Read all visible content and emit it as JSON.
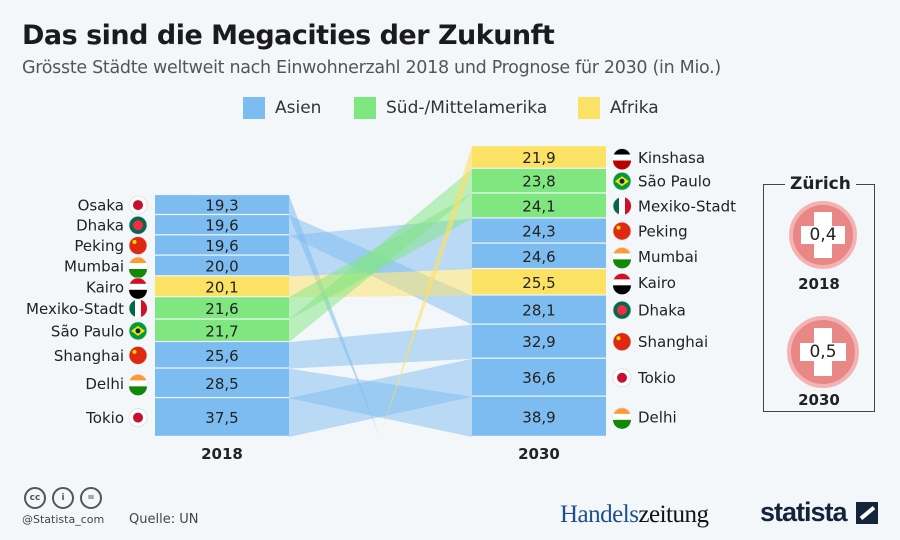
{
  "header": {
    "title": "Das sind die Megacities der Zukunft",
    "subtitle": "Grösste Städte weltweit nach Einwohnerzahl 2018 und Prognose für 2030 (in Mio.)"
  },
  "colors": {
    "Asien": "#7dbcf0",
    "Süd-/Mittelamerika": "#80e67f",
    "Afrika": "#fbe164",
    "background": "#f4f7fa"
  },
  "chart_data": {
    "type": "table",
    "title": "Das sind die Megacities der Zukunft",
    "legend": [
      "Asien",
      "Süd-/Mittelamerika",
      "Afrika"
    ],
    "legend_placement": "top",
    "columns": [
      "2018",
      "2030"
    ],
    "y2018": [
      {
        "city": "Osaka",
        "value": "19,3",
        "num": 19.3,
        "region": "Asien",
        "flag": "flag-japan"
      },
      {
        "city": "Dhaka",
        "value": "19,6",
        "num": 19.6,
        "region": "Asien",
        "flag": "flag-bangladesh"
      },
      {
        "city": "Peking",
        "value": "19,6",
        "num": 19.6,
        "region": "Asien",
        "flag": "flag-china"
      },
      {
        "city": "Mumbai",
        "value": "20,0",
        "num": 20.0,
        "region": "Asien",
        "flag": "flag-india"
      },
      {
        "city": "Kairo",
        "value": "20,1",
        "num": 20.1,
        "region": "Afrika",
        "flag": "flag-egypt"
      },
      {
        "city": "Mexiko-Stadt",
        "value": "21,6",
        "num": 21.6,
        "region": "Süd-/Mittelamerika",
        "flag": "flag-mexico"
      },
      {
        "city": "São Paulo",
        "value": "21,7",
        "num": 21.7,
        "region": "Süd-/Mittelamerika",
        "flag": "flag-brazil"
      },
      {
        "city": "Shanghai",
        "value": "25,6",
        "num": 25.6,
        "region": "Asien",
        "flag": "flag-china"
      },
      {
        "city": "Delhi",
        "value": "28,5",
        "num": 28.5,
        "region": "Asien",
        "flag": "flag-india"
      },
      {
        "city": "Tokio",
        "value": "37,5",
        "num": 37.5,
        "region": "Asien",
        "flag": "flag-japan"
      }
    ],
    "y2030": [
      {
        "city": "Kinshasa",
        "value": "21,9",
        "num": 21.9,
        "region": "Afrika",
        "flag": "flag-kenya"
      },
      {
        "city": "São Paulo",
        "value": "23,8",
        "num": 23.8,
        "region": "Süd-/Mittelamerika",
        "flag": "flag-brazil"
      },
      {
        "city": "Mexiko-Stadt",
        "value": "24,1",
        "num": 24.1,
        "region": "Süd-/Mittelamerika",
        "flag": "flag-mexico"
      },
      {
        "city": "Peking",
        "value": "24,3",
        "num": 24.3,
        "region": "Asien",
        "flag": "flag-china"
      },
      {
        "city": "Mumbai",
        "value": "24,6",
        "num": 24.6,
        "region": "Asien",
        "flag": "flag-india"
      },
      {
        "city": "Kairo",
        "value": "25,5",
        "num": 25.5,
        "region": "Afrika",
        "flag": "flag-egypt"
      },
      {
        "city": "Dhaka",
        "value": "28,1",
        "num": 28.1,
        "region": "Asien",
        "flag": "flag-bangladesh"
      },
      {
        "city": "Shanghai",
        "value": "32,9",
        "num": 32.9,
        "region": "Asien",
        "flag": "flag-china"
      },
      {
        "city": "Tokio",
        "value": "36,6",
        "num": 36.6,
        "region": "Asien",
        "flag": "flag-japan"
      },
      {
        "city": "Delhi",
        "value": "38,9",
        "num": 38.9,
        "region": "Asien",
        "flag": "flag-india"
      }
    ],
    "inset": {
      "title": "Zürich",
      "items": [
        {
          "year": "2018",
          "value": "0,4"
        },
        {
          "year": "2030",
          "value": "0,5"
        }
      ],
      "icon": "flag-switzerland"
    }
  },
  "footer": {
    "handle": "@Statista_com",
    "source": "Quelle: UN",
    "logo_handelszeitung_1": "Handels",
    "logo_handelszeitung_2": "zeitung",
    "logo_statista": "statista",
    "license_icons": [
      "cc-icon",
      "by-icon",
      "nd-icon"
    ]
  }
}
